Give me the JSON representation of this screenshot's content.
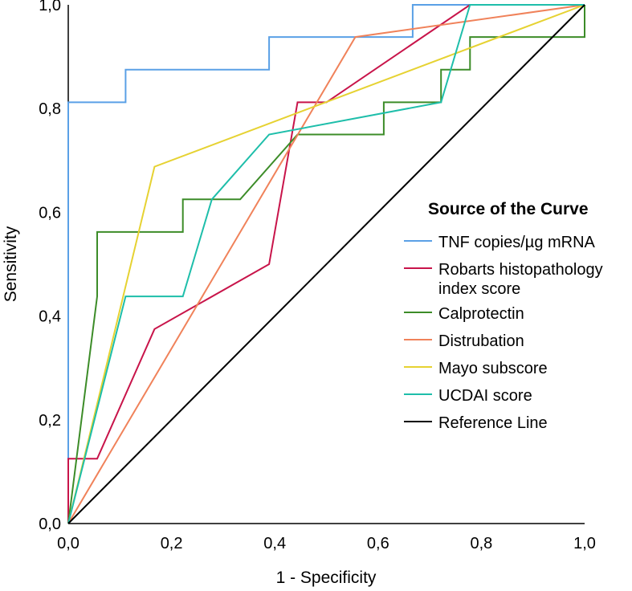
{
  "chart_data": {
    "type": "line",
    "title": "",
    "xlabel": "1 - Specificity",
    "ylabel": "Sensitivity",
    "xlim": [
      0,
      1
    ],
    "ylim": [
      0,
      1
    ],
    "x_ticks": [
      "0,0",
      "0,2",
      "0,4",
      "0,6",
      "0,8",
      "1,0"
    ],
    "y_ticks": [
      "0,0",
      "0,2",
      "0,4",
      "0,6",
      "0,8",
      "1,0"
    ],
    "legend_title": "Source of the Curve",
    "legend_position": "right",
    "series": [
      {
        "name": "TNF copies/µg mRNA",
        "color": "#5aa0e6",
        "points": [
          [
            0,
            0
          ],
          [
            0,
            0.812
          ],
          [
            0.111,
            0.812
          ],
          [
            0.111,
            0.875
          ],
          [
            0.389,
            0.875
          ],
          [
            0.389,
            0.938
          ],
          [
            0.667,
            0.938
          ],
          [
            0.667,
            1
          ],
          [
            1,
            1
          ]
        ]
      },
      {
        "name": "Robarts histopathology index score",
        "color": "#c8144a",
        "points": [
          [
            0,
            0
          ],
          [
            0,
            0.125
          ],
          [
            0.056,
            0.125
          ],
          [
            0.167,
            0.375
          ],
          [
            0.389,
            0.5
          ],
          [
            0.444,
            0.812
          ],
          [
            0.5,
            0.812
          ],
          [
            0.778,
            1
          ],
          [
            1,
            1
          ]
        ]
      },
      {
        "name": "Calprotectin",
        "color": "#3c8c28",
        "points": [
          [
            0,
            0
          ],
          [
            0.056,
            0.438
          ],
          [
            0.056,
            0.562
          ],
          [
            0.222,
            0.562
          ],
          [
            0.222,
            0.625
          ],
          [
            0.333,
            0.625
          ],
          [
            0.444,
            0.75
          ],
          [
            0.611,
            0.75
          ],
          [
            0.611,
            0.812
          ],
          [
            0.722,
            0.812
          ],
          [
            0.722,
            0.875
          ],
          [
            0.778,
            0.875
          ],
          [
            0.778,
            0.938
          ],
          [
            1,
            0.938
          ],
          [
            1,
            1
          ]
        ]
      },
      {
        "name": "Distrubation",
        "color": "#f0825a",
        "points": [
          [
            0,
            0
          ],
          [
            0.556,
            0.938
          ],
          [
            1,
            1
          ]
        ]
      },
      {
        "name": "Mayo subscore",
        "color": "#e6d232",
        "points": [
          [
            0,
            0
          ],
          [
            0.167,
            0.688
          ],
          [
            1,
            1
          ]
        ]
      },
      {
        "name": "UCDAI score",
        "color": "#1ebeaa",
        "points": [
          [
            0,
            0
          ],
          [
            0.111,
            0.438
          ],
          [
            0.222,
            0.438
          ],
          [
            0.278,
            0.625
          ],
          [
            0.389,
            0.75
          ],
          [
            0.722,
            0.812
          ],
          [
            0.778,
            1
          ],
          [
            1,
            1
          ]
        ]
      },
      {
        "name": "Reference Line",
        "color": "#000000",
        "points": [
          [
            0,
            0
          ],
          [
            1,
            1
          ]
        ]
      }
    ],
    "legend_entries": [
      [
        "TNF copies/µg mRNA"
      ],
      [
        "Robarts histopathology",
        "index score"
      ],
      [
        "Calprotectin"
      ],
      [
        "Distrubation"
      ],
      [
        "Mayo subscore"
      ],
      [
        "UCDAI score"
      ],
      [
        "Reference Line"
      ]
    ]
  }
}
